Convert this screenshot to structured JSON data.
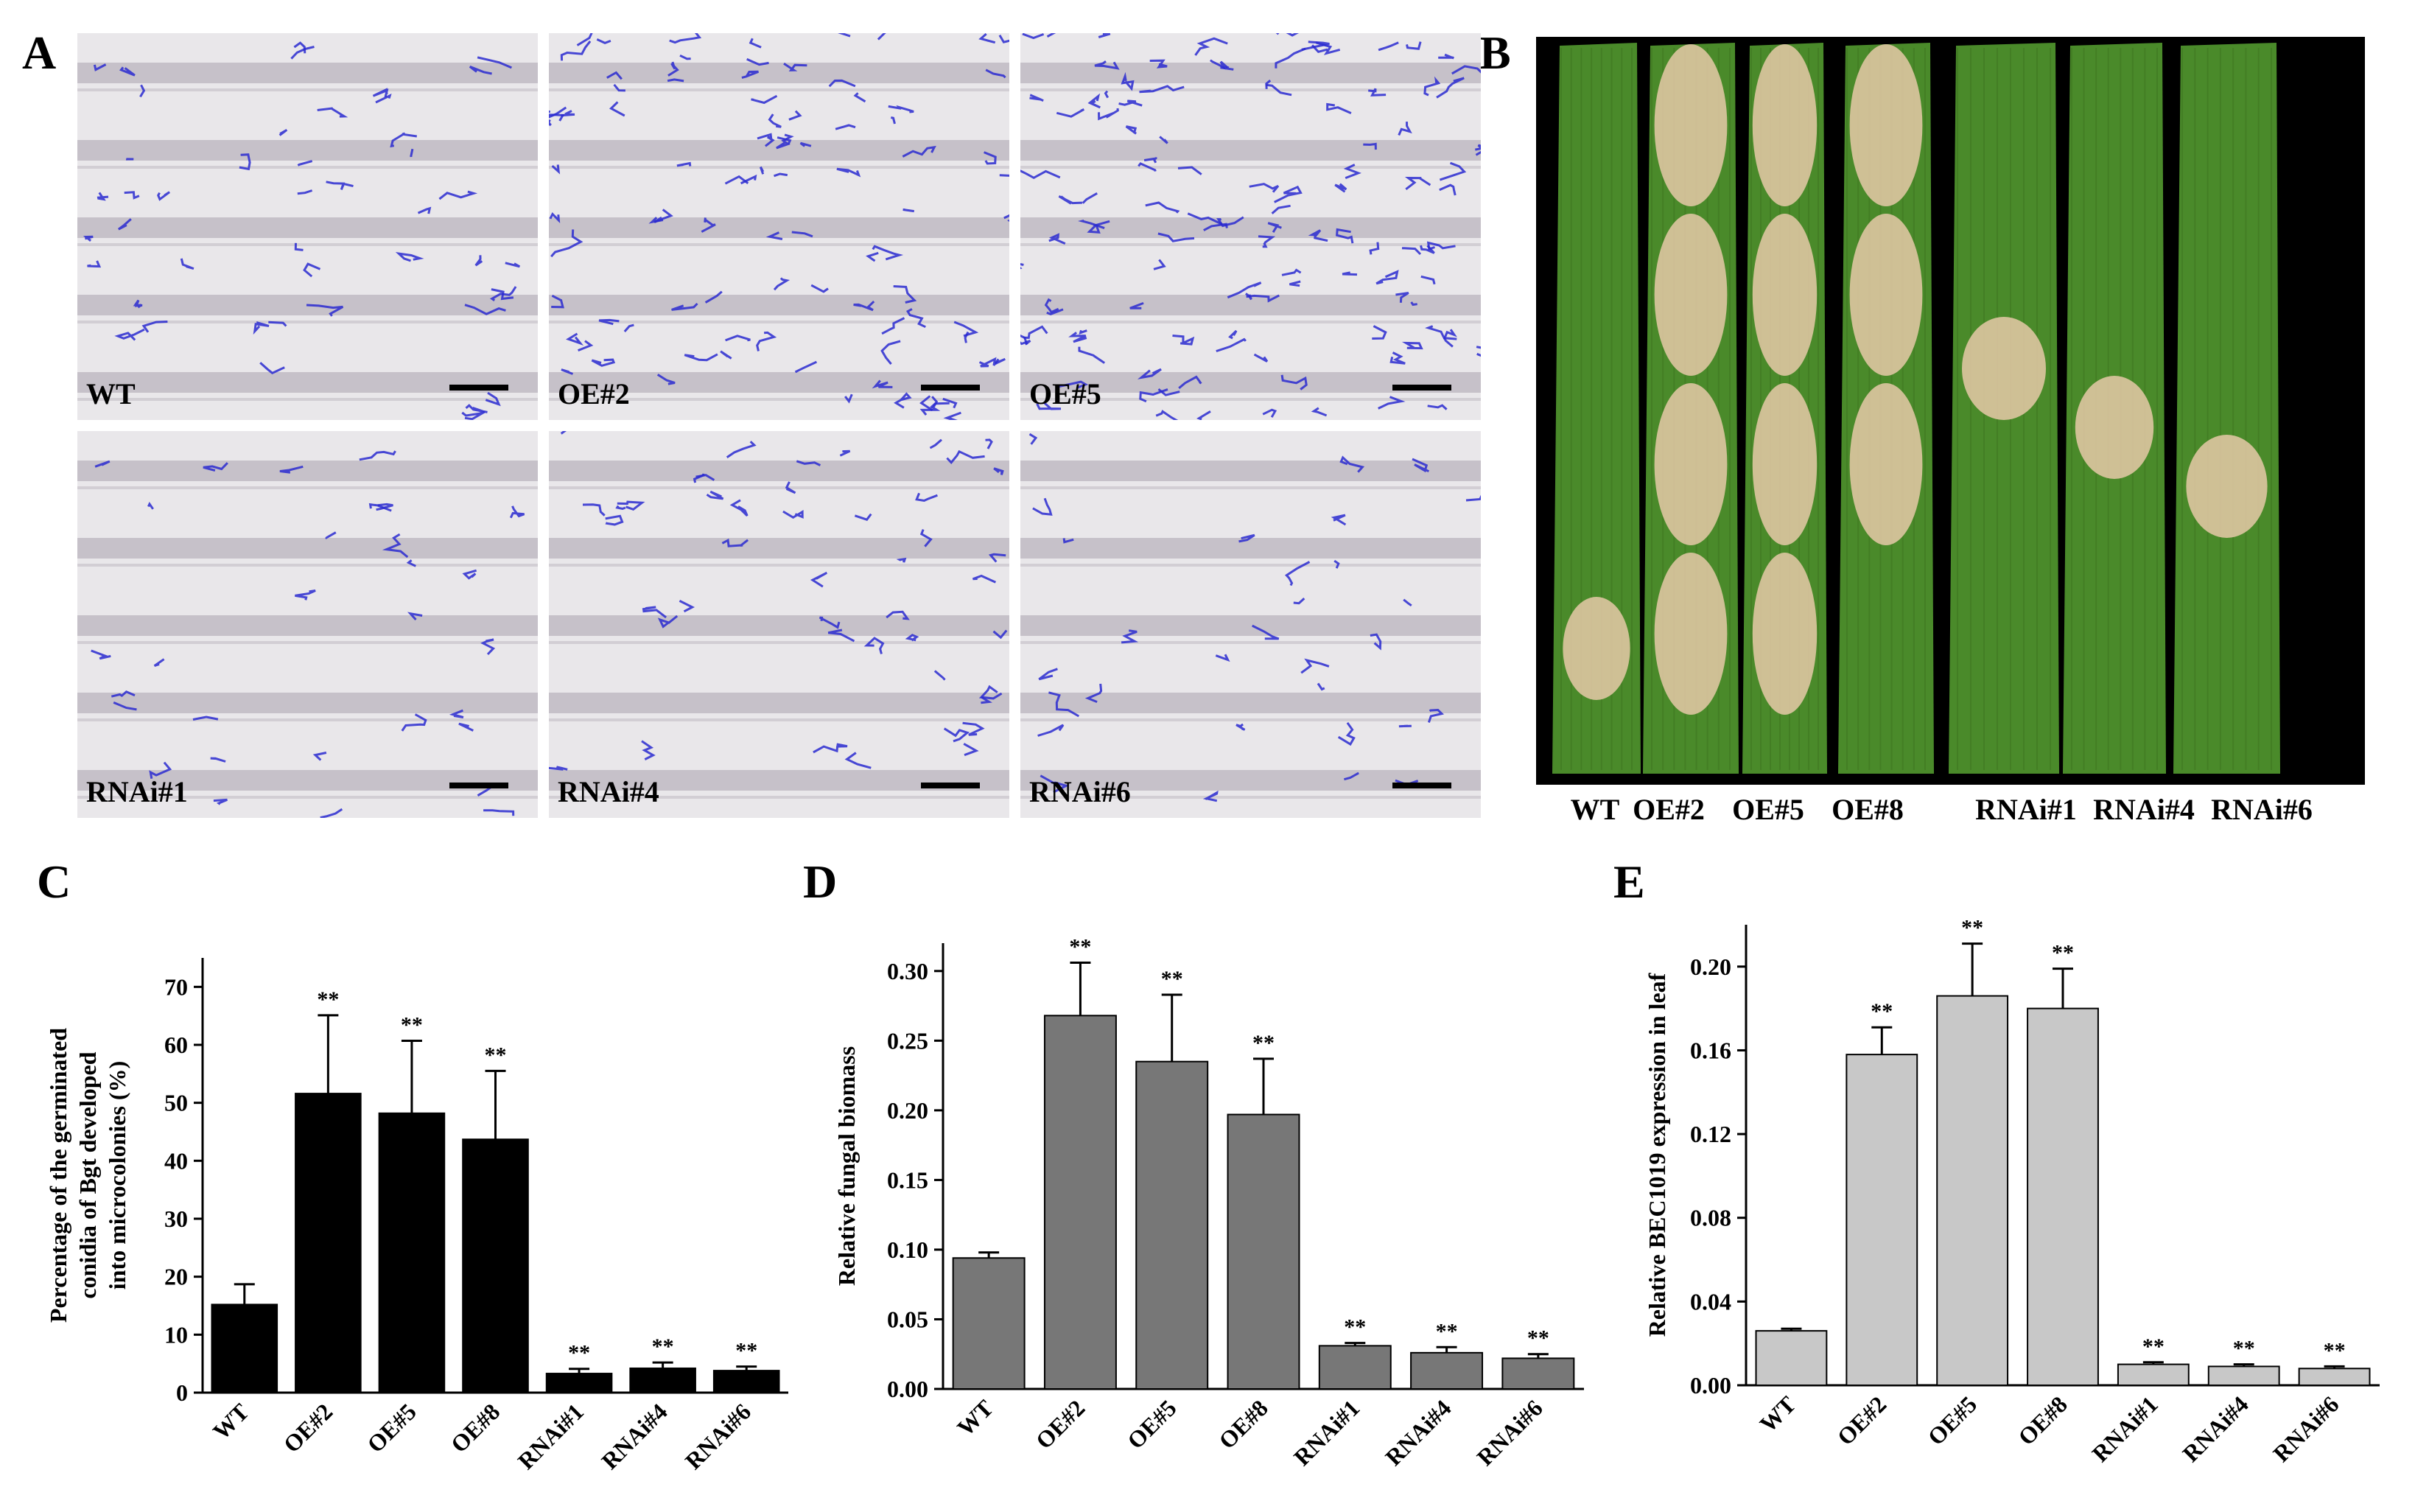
{
  "panel_labels": {
    "a": "A",
    "b": "B",
    "c": "C",
    "d": "D",
    "e": "E"
  },
  "panel_a": {
    "images": [
      {
        "label": "WT"
      },
      {
        "label": "OE#2"
      },
      {
        "label": "OE#5"
      },
      {
        "label": "RNAi#1"
      },
      {
        "label": "RNAi#4"
      },
      {
        "label": "RNAi#6"
      }
    ],
    "stain_color": "#2a2ad0"
  },
  "panel_b": {
    "leaves": [
      "WT",
      "OE#2",
      "OE#5",
      "OE#8",
      "RNAi#1",
      "RNAi#4",
      "RNAi#6"
    ],
    "leaf_color": "#4a8a2a",
    "lesion_color": "#e6c9a8"
  },
  "chart_data": [
    {
      "type": "bar",
      "panel": "C",
      "categories": [
        "WT",
        "OE#2",
        "OE#5",
        "OE#8",
        "RNAi#1",
        "RNAi#4",
        "RNAi#6"
      ],
      "values": [
        15.2,
        51.6,
        48.2,
        43.7,
        3.3,
        4.2,
        3.8
      ],
      "errors": [
        3.5,
        13.5,
        12.5,
        11.8,
        0.8,
        1.0,
        0.7
      ],
      "significance": [
        "",
        "**",
        "**",
        "**",
        "**",
        "**",
        "**"
      ],
      "ylabel_lines": [
        "Percentage of the germinated",
        "conidia of Bgt developed",
        "into microcolonies (%)"
      ],
      "ylim": [
        0,
        75
      ],
      "yticks": [
        0,
        10,
        20,
        30,
        40,
        50,
        60,
        70
      ],
      "bar_color": "#000000"
    },
    {
      "type": "bar",
      "panel": "D",
      "categories": [
        "WT",
        "OE#2",
        "OE#5",
        "OE#8",
        "RNAi#1",
        "RNAi#4",
        "RNAi#6"
      ],
      "values": [
        0.094,
        0.268,
        0.235,
        0.197,
        0.031,
        0.026,
        0.022
      ],
      "errors": [
        0.004,
        0.038,
        0.048,
        0.04,
        0.002,
        0.004,
        0.003
      ],
      "significance": [
        "",
        "**",
        "**",
        "**",
        "**",
        "**",
        "**"
      ],
      "ylabel_lines": [
        "Relative fungal biomass"
      ],
      "ylim": [
        0,
        0.32
      ],
      "yticks": [
        0.0,
        0.05,
        0.1,
        0.15,
        0.2,
        0.25,
        0.3
      ],
      "bar_color": "#777777"
    },
    {
      "type": "bar",
      "panel": "E",
      "categories": [
        "WT",
        "OE#2",
        "OE#5",
        "OE#8",
        "RNAi#1",
        "RNAi#4",
        "RNAi#6"
      ],
      "values": [
        0.026,
        0.158,
        0.186,
        0.18,
        0.01,
        0.009,
        0.008
      ],
      "errors": [
        0.001,
        0.013,
        0.025,
        0.019,
        0.001,
        0.001,
        0.001
      ],
      "significance": [
        "",
        "**",
        "**",
        "**",
        "**",
        "**",
        "**"
      ],
      "ylabel_lines": [
        "Relative BEC1019 expression in leaf"
      ],
      "ylim": [
        0,
        0.22
      ],
      "yticks": [
        0.0,
        0.04,
        0.08,
        0.12,
        0.16,
        0.2
      ],
      "bar_color": "#c8c8c8"
    }
  ]
}
